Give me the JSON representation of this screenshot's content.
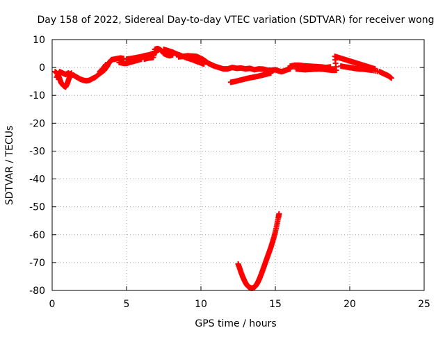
{
  "chart_data": {
    "type": "scatter",
    "title": "Day 158 of 2022, Sidereal Day-to-day VTEC variation (SDTVAR) for receiver wong",
    "xlabel": "GPS time / hours",
    "ylabel": "SDTVAR / TECUs",
    "xlim": [
      0,
      25
    ],
    "ylim": [
      -80,
      10
    ],
    "x_ticks": [
      0,
      5,
      10,
      15,
      20,
      25
    ],
    "y_ticks": [
      10,
      0,
      -10,
      -20,
      -30,
      -40,
      -50,
      -60,
      -70,
      -80
    ],
    "grid": true,
    "marker": "+",
    "series_color": "#ff0000",
    "series": [
      {
        "name": "main-trace",
        "points": [
          [
            0.2,
            -1.5
          ],
          [
            0.4,
            -2.5
          ],
          [
            0.5,
            -4.0
          ],
          [
            0.6,
            -5.5
          ],
          [
            0.75,
            -6.5
          ],
          [
            0.9,
            -7.0
          ],
          [
            1.0,
            -6.0
          ],
          [
            1.1,
            -4.5
          ],
          [
            1.2,
            -3.0
          ],
          [
            1.3,
            -2.0
          ],
          [
            0.3,
            -3.5
          ],
          [
            0.5,
            -1.5
          ],
          [
            0.7,
            -2.0
          ],
          [
            0.9,
            -2.5
          ],
          [
            1.1,
            -2.0
          ],
          [
            1.5,
            -3.0
          ],
          [
            1.7,
            -3.6
          ],
          [
            1.9,
            -4.2
          ],
          [
            2.1,
            -4.6
          ],
          [
            2.3,
            -4.8
          ],
          [
            2.5,
            -4.6
          ],
          [
            2.7,
            -4.0
          ],
          [
            2.9,
            -3.5
          ],
          [
            3.1,
            -2.6
          ],
          [
            3.3,
            -1.8
          ],
          [
            3.5,
            -1.0
          ],
          [
            3.6,
            -0.2
          ],
          [
            3.7,
            0.5
          ],
          [
            3.8,
            1.5
          ],
          [
            3.9,
            2.2
          ],
          [
            4.0,
            2.8
          ],
          [
            4.2,
            3.0
          ],
          [
            4.4,
            3.2
          ],
          [
            4.6,
            3.4
          ],
          [
            4.8,
            3.2
          ],
          [
            3.2,
            -1.5
          ],
          [
            3.4,
            -0.5
          ],
          [
            3.6,
            1.0
          ],
          [
            4.5,
            1.8
          ],
          [
            4.8,
            1.5
          ],
          [
            5.0,
            1.5
          ],
          [
            5.2,
            1.8
          ],
          [
            5.4,
            2.1
          ],
          [
            5.6,
            2.4
          ],
          [
            5.8,
            2.7
          ],
          [
            6.0,
            3.0
          ],
          [
            5.0,
            3.0
          ],
          [
            5.3,
            3.2
          ],
          [
            5.6,
            3.5
          ],
          [
            5.9,
            3.8
          ],
          [
            6.2,
            4.2
          ],
          [
            6.5,
            4.5
          ],
          [
            6.8,
            5.0
          ],
          [
            7.0,
            5.5
          ],
          [
            6.2,
            3.0
          ],
          [
            6.5,
            3.4
          ],
          [
            6.8,
            3.6
          ],
          [
            6.9,
            6.5
          ],
          [
            7.1,
            6.8
          ],
          [
            7.3,
            6.3
          ],
          [
            7.5,
            5.0
          ],
          [
            7.7,
            4.5
          ],
          [
            7.9,
            4.2
          ],
          [
            8.1,
            4.5
          ],
          [
            7.5,
            6.5
          ],
          [
            7.8,
            6.0
          ],
          [
            8.1,
            5.5
          ],
          [
            8.4,
            4.8
          ],
          [
            8.7,
            4.2
          ],
          [
            9.0,
            3.5
          ],
          [
            9.3,
            3.0
          ],
          [
            9.6,
            2.4
          ],
          [
            9.9,
            1.8
          ],
          [
            10.2,
            1.2
          ],
          [
            8.5,
            3.8
          ],
          [
            8.8,
            4.0
          ],
          [
            9.1,
            4.2
          ],
          [
            9.4,
            4.1
          ],
          [
            9.7,
            4.0
          ],
          [
            9.9,
            3.5
          ],
          [
            10.1,
            3.0
          ],
          [
            10.3,
            2.3
          ],
          [
            10.5,
            1.5
          ],
          [
            10.7,
            1.0
          ],
          [
            10.9,
            0.5
          ],
          [
            11.2,
            0.0
          ],
          [
            11.5,
            -0.5
          ],
          [
            11.8,
            -0.5
          ],
          [
            12.1,
            0.0
          ],
          [
            12.4,
            -0.3
          ],
          [
            12.7,
            -0.2
          ],
          [
            13.0,
            -0.5
          ],
          [
            13.3,
            -0.3
          ],
          [
            13.6,
            -0.8
          ],
          [
            13.9,
            -0.5
          ],
          [
            14.2,
            -0.6
          ],
          [
            14.5,
            -1.0
          ],
          [
            14.8,
            -1.0
          ],
          [
            15.0,
            -0.8
          ],
          [
            15.2,
            -1.2
          ],
          [
            15.4,
            -1.5
          ],
          [
            15.6,
            -1.2
          ],
          [
            15.8,
            -0.8
          ],
          [
            16.0,
            -0.5
          ],
          [
            12.0,
            -5.3
          ],
          [
            12.3,
            -5.0
          ],
          [
            12.6,
            -4.6
          ],
          [
            12.9,
            -4.2
          ],
          [
            13.2,
            -3.8
          ],
          [
            13.5,
            -3.5
          ],
          [
            13.8,
            -3.2
          ],
          [
            14.1,
            -2.8
          ],
          [
            14.4,
            -2.4
          ],
          [
            14.7,
            -2.0
          ],
          [
            16.0,
            0.5
          ],
          [
            16.3,
            0.8
          ],
          [
            16.6,
            0.8
          ],
          [
            16.9,
            0.6
          ],
          [
            17.2,
            0.5
          ],
          [
            17.5,
            0.4
          ],
          [
            17.8,
            0.3
          ],
          [
            18.1,
            0.2
          ],
          [
            18.4,
            0.0
          ],
          [
            18.7,
            0.2
          ],
          [
            16.4,
            -0.5
          ],
          [
            16.7,
            -0.7
          ],
          [
            17.0,
            -0.8
          ],
          [
            17.3,
            -0.7
          ],
          [
            17.6,
            -0.6
          ],
          [
            17.9,
            -0.5
          ],
          [
            18.2,
            -0.6
          ],
          [
            18.5,
            -0.8
          ],
          [
            18.8,
            -1.0
          ],
          [
            19.1,
            -1.0
          ],
          [
            19.0,
            4.0
          ],
          [
            19.3,
            3.5
          ],
          [
            19.6,
            3.0
          ],
          [
            19.9,
            2.5
          ],
          [
            20.2,
            2.0
          ],
          [
            20.5,
            1.5
          ],
          [
            20.8,
            1.0
          ],
          [
            21.1,
            0.5
          ],
          [
            21.4,
            0.0
          ],
          [
            21.7,
            -0.5
          ],
          [
            19.4,
            0.5
          ],
          [
            19.7,
            0.2
          ],
          [
            20.0,
            0.0
          ],
          [
            20.3,
            -0.3
          ],
          [
            20.6,
            -0.5
          ],
          [
            20.9,
            -0.6
          ],
          [
            21.2,
            -0.8
          ],
          [
            21.5,
            -1.0
          ],
          [
            22.0,
            -1.5
          ],
          [
            22.2,
            -2.0
          ],
          [
            22.4,
            -2.5
          ],
          [
            22.6,
            -3.0
          ],
          [
            22.8,
            -3.8
          ]
        ]
      },
      {
        "name": "dip-trace",
        "points": [
          [
            12.5,
            -70.5
          ],
          [
            12.6,
            -72.0
          ],
          [
            12.7,
            -73.6
          ],
          [
            12.8,
            -75.0
          ],
          [
            12.9,
            -76.2
          ],
          [
            13.0,
            -77.3
          ],
          [
            13.1,
            -78.1
          ],
          [
            13.2,
            -78.7
          ],
          [
            13.3,
            -79.0
          ],
          [
            13.4,
            -79.2
          ],
          [
            13.5,
            -79.1
          ],
          [
            13.6,
            -78.8
          ],
          [
            13.7,
            -78.2
          ],
          [
            13.8,
            -77.3
          ],
          [
            13.9,
            -76.2
          ],
          [
            14.0,
            -74.9
          ],
          [
            14.1,
            -73.5
          ],
          [
            14.2,
            -72.0
          ],
          [
            14.3,
            -70.5
          ],
          [
            14.4,
            -69.0
          ],
          [
            14.5,
            -67.5
          ],
          [
            14.6,
            -66.0
          ],
          [
            14.7,
            -64.5
          ],
          [
            14.8,
            -62.8
          ],
          [
            14.9,
            -61.0
          ],
          [
            15.0,
            -59.0
          ],
          [
            15.1,
            -56.5
          ],
          [
            15.2,
            -54.0
          ],
          [
            15.25,
            -52.5
          ]
        ]
      }
    ]
  }
}
